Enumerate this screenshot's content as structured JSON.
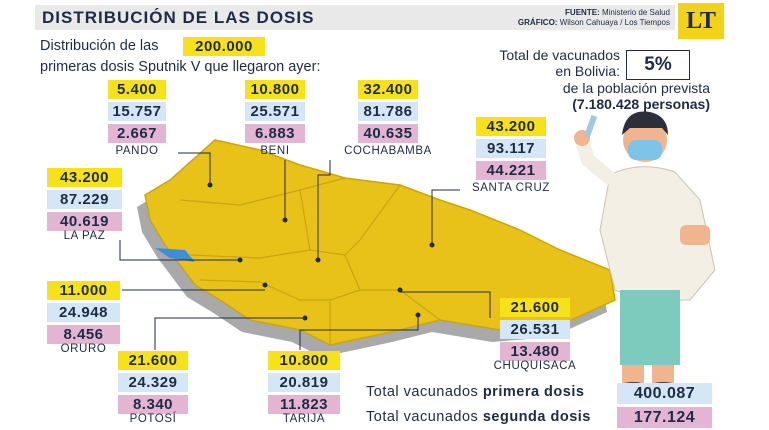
{
  "header": {
    "title": "DISTRIBUCIÓN DE LAS DOSIS",
    "source_label": "FUENTE:",
    "source": "Ministerio de Salud",
    "graphic_label": "GRÁFICO:",
    "graphic": "Wilson Cahuaya / Los Tiempos",
    "logo": "LT"
  },
  "intro": {
    "line1": "Distribución de las",
    "highlight": "200.000",
    "line2": "primeras dosis Sputnik V que llegaron ayer:"
  },
  "percent_box": {
    "line1": "Total de vacunados",
    "line2": "en Bolivia:",
    "value": "5%",
    "line3": "de la población prevista",
    "line4": "(7.180.428 personas)"
  },
  "regions": [
    {
      "name": "PANDO",
      "received": "5.400",
      "first": "15.757",
      "second": "2.667"
    },
    {
      "name": "BENI",
      "received": "10.800",
      "first": "25.571",
      "second": "6.883"
    },
    {
      "name": "COCHABAMBA",
      "received": "32.400",
      "first": "81.786",
      "second": "40.635"
    },
    {
      "name": "SANTA CRUZ",
      "received": "43.200",
      "first": "93.117",
      "second": "44.221"
    },
    {
      "name": "LA PAZ",
      "received": "43.200",
      "first": "87.229",
      "second": "40.619"
    },
    {
      "name": "ORURO",
      "received": "11.000",
      "first": "24.948",
      "second": "8.456"
    },
    {
      "name": "CHUQUISACA",
      "received": "21.600",
      "first": "26.531",
      "second": "13.480"
    },
    {
      "name": "POTOSÍ",
      "received": "21.600",
      "first": "24.329",
      "second": "8.340"
    },
    {
      "name": "TARIJA",
      "received": "10.800",
      "first": "20.819",
      "second": "11.823"
    }
  ],
  "totals": {
    "first_label": "Total vacunados",
    "first_bold": "primera dosis",
    "first_value": "400.087",
    "second_label": "Total vacunados",
    "second_bold": "segunda dosis",
    "second_value": "177.124"
  }
}
